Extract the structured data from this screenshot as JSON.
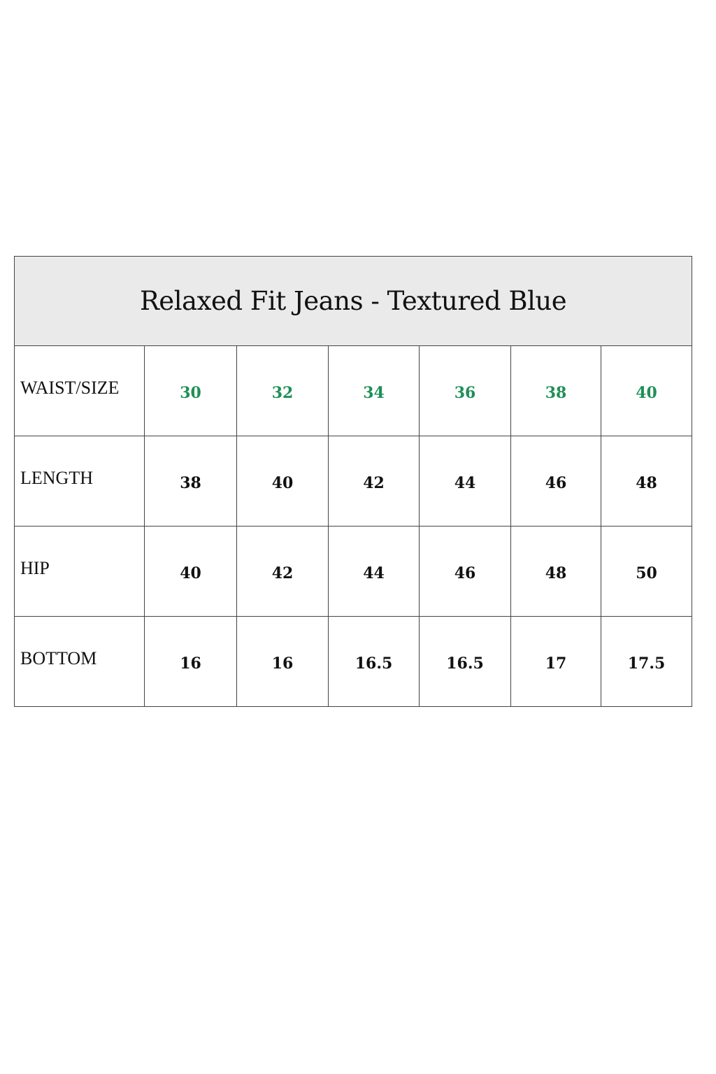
{
  "title": "Relaxed Fit Jeans - Textured Blue",
  "accent_color": "#1e8f55",
  "header_background": "#eaeaea",
  "rows": [
    {
      "label": "WAIST/SIZE",
      "values": [
        "30",
        "32",
        "34",
        "36",
        "38",
        "40"
      ]
    },
    {
      "label": "LENGTH",
      "values": [
        "38",
        "40",
        "42",
        "44",
        "46",
        "48"
      ]
    },
    {
      "label": "HIP",
      "values": [
        "40",
        "42",
        "44",
        "46",
        "48",
        "50"
      ]
    },
    {
      "label": "BOTTOM",
      "values": [
        "16",
        "16",
        "16.5",
        "16.5",
        "17",
        "17.5"
      ]
    }
  ]
}
